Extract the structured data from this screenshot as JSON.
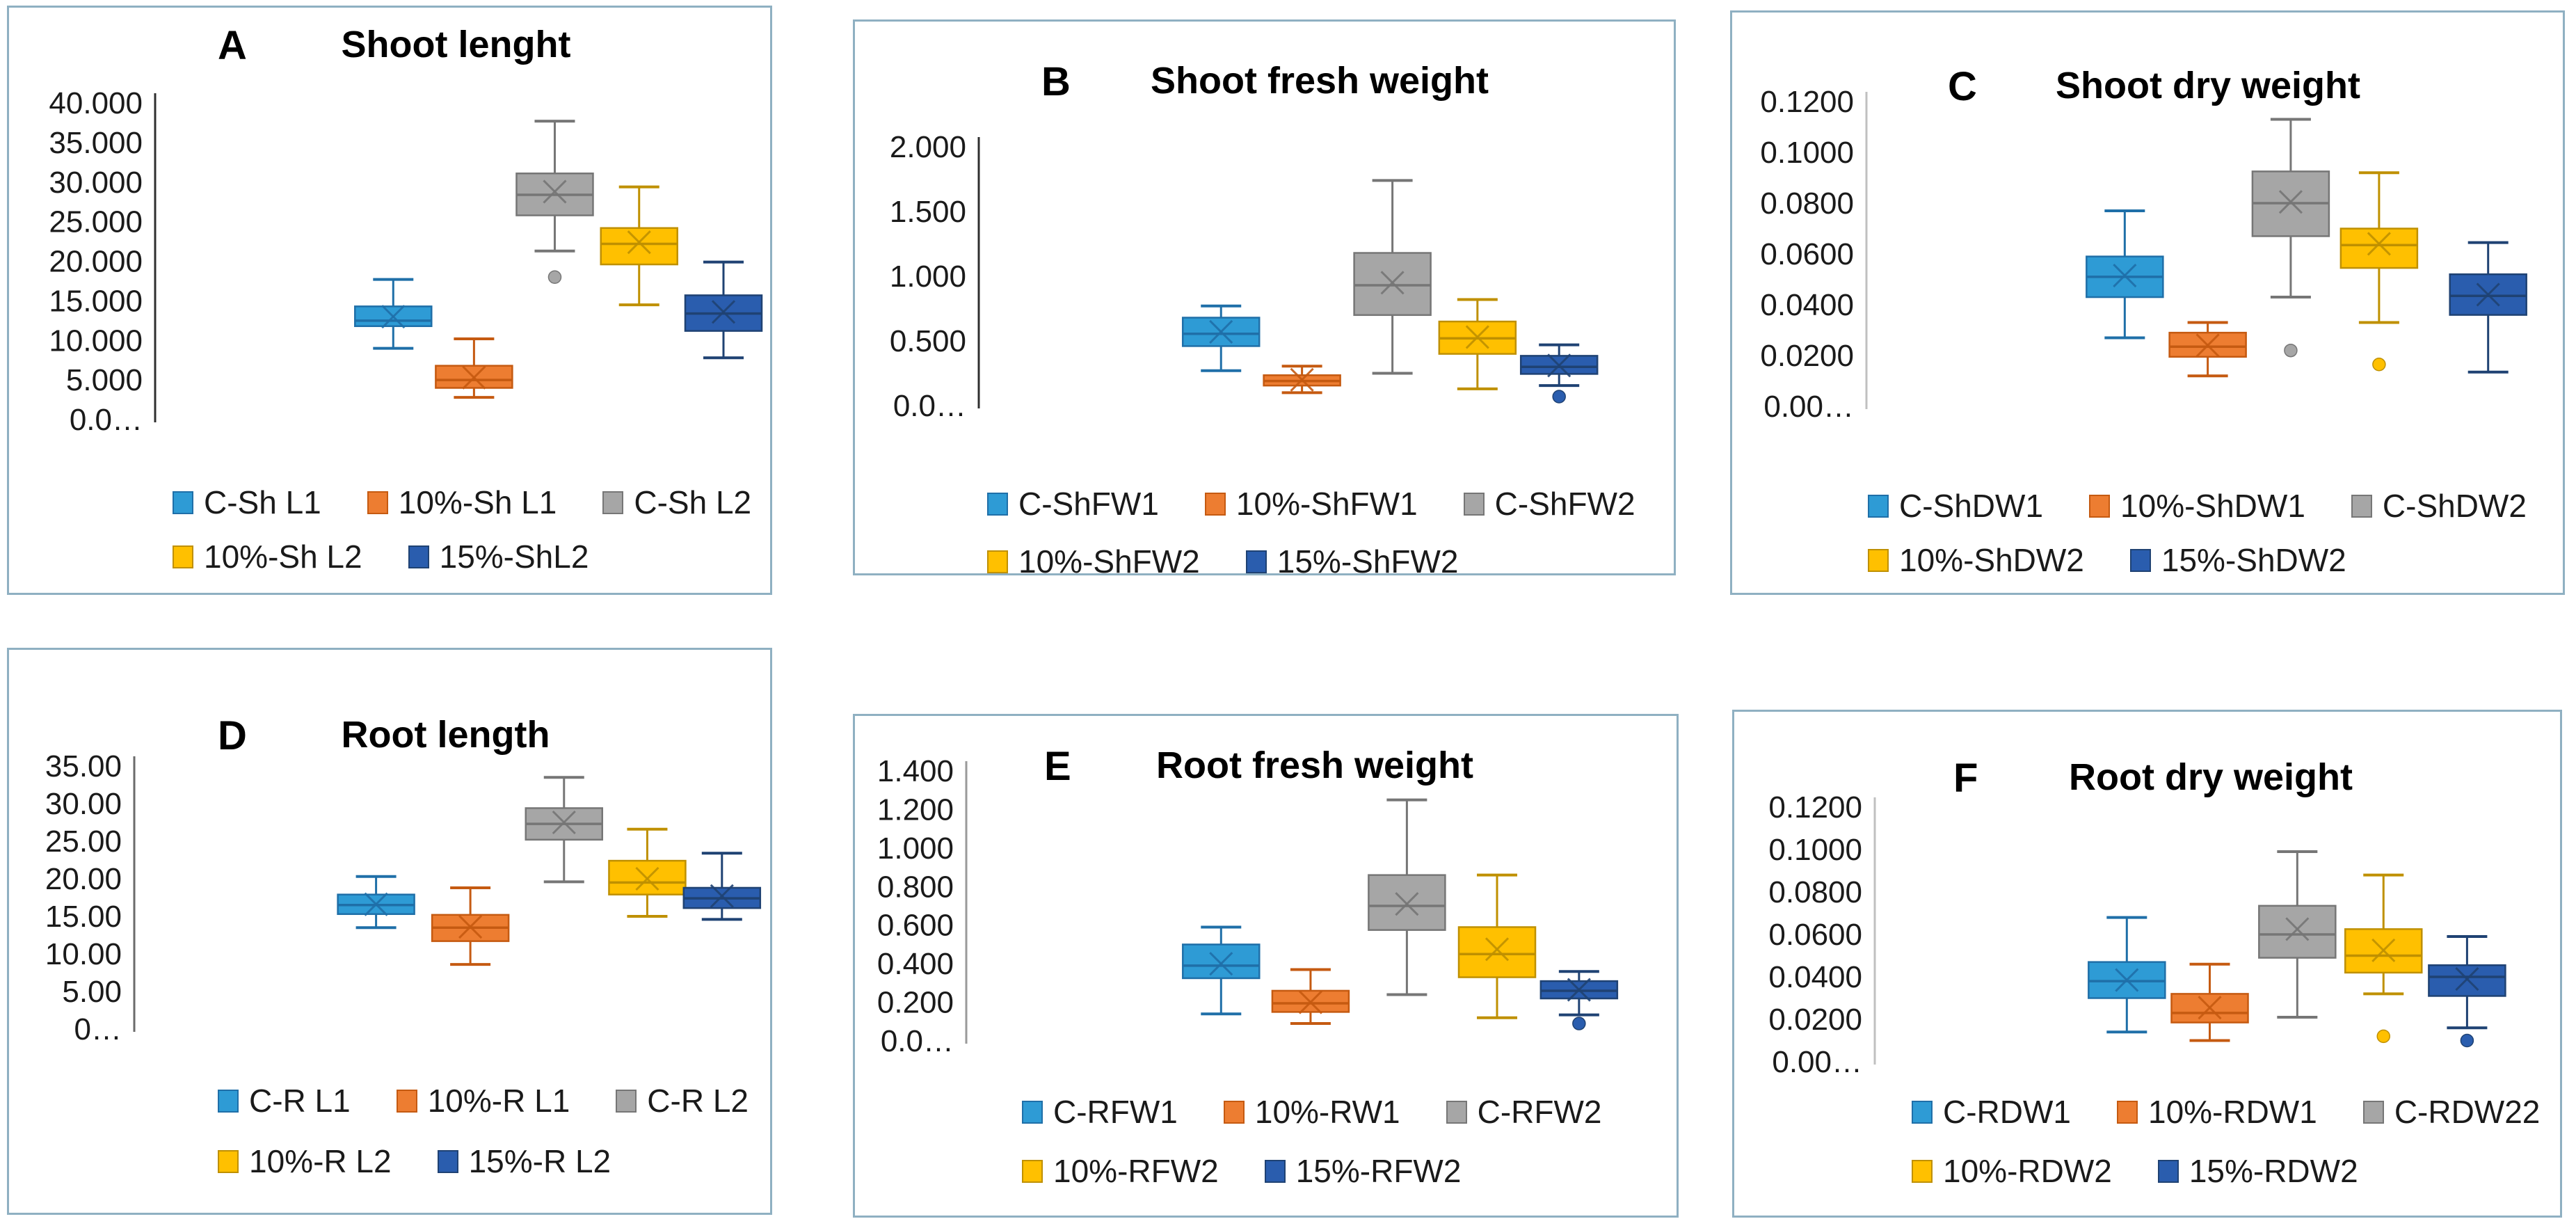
{
  "figure": {
    "background": "#ffffff",
    "panel_border_color": "#8FB0C2",
    "description": "Six box-and-whisker charts labelled A to F"
  },
  "palette": {
    "blue": {
      "fill": "#2E9BD5",
      "stroke": "#1F6FA8"
    },
    "orange": {
      "fill": "#ED7D31",
      "stroke": "#C55A11"
    },
    "gray": {
      "fill": "#A6A6A6",
      "stroke": "#767676"
    },
    "yellow": {
      "fill": "#FFC000",
      "stroke": "#BF9000"
    },
    "darkblue": {
      "fill": "#2A5DAE",
      "stroke": "#1F4273"
    }
  },
  "chart_data": [
    {
      "type": "box",
      "panel_label": "A",
      "title": "Shoot lenght",
      "xlabel": "",
      "ylabel": "",
      "ylim": [
        0,
        40
      ],
      "yticks": [
        "40.000",
        "35.000",
        "30.000",
        "25.000",
        "20.000",
        "15.000",
        "10.000",
        "5.000",
        "0.0…"
      ],
      "ytick_values": [
        40,
        35,
        30,
        25,
        20,
        15,
        10,
        5,
        0
      ],
      "grid": false,
      "legend_position": "bottom",
      "series": [
        {
          "name": "C-Sh L1",
          "color": "blue",
          "low": 9.0,
          "q1": 11.8,
          "median": 12.5,
          "mean": 13.0,
          "q3": 14.3,
          "high": 17.7,
          "outliers": []
        },
        {
          "name": "10%-Sh L1",
          "color": "orange",
          "low": 2.8,
          "q1": 4.0,
          "median": 5.0,
          "mean": 5.3,
          "q3": 6.8,
          "high": 10.2,
          "outliers": []
        },
        {
          "name": "C-Sh L2",
          "color": "gray",
          "low": 21.3,
          "q1": 25.8,
          "median": 28.4,
          "mean": 28.8,
          "q3": 31.1,
          "high": 37.7,
          "outliers": [
            18.0
          ]
        },
        {
          "name": "10%-Sh L2",
          "color": "yellow",
          "low": 14.5,
          "q1": 19.6,
          "median": 22.2,
          "mean": 22.4,
          "q3": 24.2,
          "high": 29.4,
          "outliers": []
        },
        {
          "name": "15%-ShL2",
          "color": "darkblue",
          "low": 7.8,
          "q1": 11.2,
          "median": 13.4,
          "mean": 13.6,
          "q3": 15.7,
          "high": 19.9,
          "outliers": []
        }
      ]
    },
    {
      "type": "box",
      "panel_label": "B",
      "title": "Shoot fresh weight",
      "xlabel": "",
      "ylabel": "",
      "ylim": [
        0,
        2
      ],
      "yticks": [
        "2.000",
        "1.500",
        "1.000",
        "0.500",
        "0.0…"
      ],
      "ytick_values": [
        2,
        1.5,
        1,
        0.5,
        0
      ],
      "grid": false,
      "legend_position": "bottom",
      "series": [
        {
          "name": "C-ShFW1",
          "color": "blue",
          "low": 0.27,
          "q1": 0.46,
          "median": 0.555,
          "mean": 0.57,
          "q3": 0.68,
          "high": 0.77,
          "outliers": []
        },
        {
          "name": "10%-ShFW1",
          "color": "orange",
          "low": 0.1,
          "q1": 0.155,
          "median": 0.19,
          "mean": 0.2,
          "q3": 0.235,
          "high": 0.305,
          "outliers": []
        },
        {
          "name": "C-ShFW2",
          "color": "gray",
          "low": 0.25,
          "q1": 0.7,
          "median": 0.93,
          "mean": 0.95,
          "q3": 1.18,
          "high": 1.74,
          "outliers": []
        },
        {
          "name": "10%-ShFW2",
          "color": "yellow",
          "low": 0.13,
          "q1": 0.4,
          "median": 0.52,
          "mean": 0.53,
          "q3": 0.65,
          "high": 0.82,
          "outliers": []
        },
        {
          "name": "15%-ShFW2",
          "color": "darkblue",
          "low": 0.155,
          "q1": 0.245,
          "median": 0.3,
          "mean": 0.31,
          "q3": 0.385,
          "high": 0.47,
          "outliers": [
            0.07
          ]
        }
      ]
    },
    {
      "type": "box",
      "panel_label": "C",
      "title": "Shoot dry weight",
      "xlabel": "",
      "ylabel": "",
      "ylim": [
        0,
        0.12
      ],
      "yticks": [
        "0.1200",
        "0.1000",
        "0.0800",
        "0.0600",
        "0.0400",
        "0.0200",
        "0.00…"
      ],
      "ytick_values": [
        0.12,
        0.1,
        0.08,
        0.06,
        0.04,
        0.02,
        0
      ],
      "grid": false,
      "legend_position": "bottom",
      "series": [
        {
          "name": "C-ShDW1",
          "color": "blue",
          "low": 0.027,
          "q1": 0.043,
          "median": 0.051,
          "mean": 0.0515,
          "q3": 0.059,
          "high": 0.077,
          "outliers": []
        },
        {
          "name": "10%-ShDW1",
          "color": "orange",
          "low": 0.012,
          "q1": 0.0195,
          "median": 0.0235,
          "mean": 0.024,
          "q3": 0.029,
          "high": 0.033,
          "outliers": []
        },
        {
          "name": "C-ShDW2",
          "color": "gray",
          "low": 0.043,
          "q1": 0.067,
          "median": 0.08,
          "mean": 0.0805,
          "q3": 0.0925,
          "high": 0.113,
          "outliers": [
            0.022
          ]
        },
        {
          "name": "10%-ShDW2",
          "color": "yellow",
          "low": 0.033,
          "q1": 0.0545,
          "median": 0.0635,
          "mean": 0.064,
          "q3": 0.07,
          "high": 0.092,
          "outliers": [
            0.0165
          ]
        },
        {
          "name": "15%-ShDW2",
          "color": "darkblue",
          "low": 0.0135,
          "q1": 0.036,
          "median": 0.0435,
          "mean": 0.044,
          "q3": 0.052,
          "high": 0.0645,
          "outliers": []
        }
      ]
    },
    {
      "type": "box",
      "panel_label": "D",
      "title": "Root length",
      "xlabel": "",
      "ylabel": "",
      "ylim": [
        0,
        35
      ],
      "yticks": [
        "35.00",
        "30.00",
        "25.00",
        "20.00",
        "15.00",
        "10.00",
        "5.00",
        "0…"
      ],
      "ytick_values": [
        35,
        30,
        25,
        20,
        15,
        10,
        5,
        0
      ],
      "grid": false,
      "legend_position": "bottom",
      "series": [
        {
          "name": "C-R L1",
          "color": "blue",
          "low": 13.5,
          "q1": 15.3,
          "median": 16.5,
          "mean": 16.6,
          "q3": 17.9,
          "high": 20.3,
          "outliers": []
        },
        {
          "name": "10%-R L1",
          "color": "orange",
          "low": 8.6,
          "q1": 11.7,
          "median": 13.5,
          "mean": 13.6,
          "q3": 15.2,
          "high": 18.8,
          "outliers": []
        },
        {
          "name": "C-R L2",
          "color": "gray",
          "low": 19.6,
          "q1": 25.2,
          "median": 27.3,
          "mean": 27.5,
          "q3": 29.4,
          "high": 33.5,
          "outliers": []
        },
        {
          "name": "10%-R L2",
          "color": "yellow",
          "low": 15.0,
          "q1": 17.9,
          "median": 19.5,
          "mean": 20.0,
          "q3": 22.4,
          "high": 26.6,
          "outliers": []
        },
        {
          "name": "15%-R L2",
          "color": "darkblue",
          "low": 14.6,
          "q1": 16.1,
          "median": 17.4,
          "mean": 17.7,
          "q3": 18.8,
          "high": 23.4,
          "outliers": []
        }
      ]
    },
    {
      "type": "box",
      "panel_label": "E",
      "title": "Root fresh weight",
      "xlabel": "",
      "ylabel": "",
      "ylim": [
        0,
        1.4
      ],
      "yticks": [
        "1.400",
        "1.200",
        "1.000",
        "0.800",
        "0.600",
        "0.400",
        "0.200",
        "0.0…"
      ],
      "ytick_values": [
        1.4,
        1.2,
        1.0,
        0.8,
        0.6,
        0.4,
        0.2,
        0
      ],
      "grid": false,
      "legend_position": "bottom",
      "series": [
        {
          "name": "C-RFW1",
          "color": "blue",
          "low": 0.14,
          "q1": 0.325,
          "median": 0.39,
          "mean": 0.4,
          "q3": 0.5,
          "high": 0.59,
          "outliers": []
        },
        {
          "name": "10%-RW1",
          "color": "orange",
          "low": 0.09,
          "q1": 0.15,
          "median": 0.195,
          "mean": 0.2,
          "q3": 0.26,
          "high": 0.37,
          "outliers": []
        },
        {
          "name": "C-RFW2",
          "color": "gray",
          "low": 0.24,
          "q1": 0.575,
          "median": 0.7,
          "mean": 0.71,
          "q3": 0.86,
          "high": 1.25,
          "outliers": []
        },
        {
          "name": "10%-RFW2",
          "color": "yellow",
          "low": 0.12,
          "q1": 0.33,
          "median": 0.45,
          "mean": 0.475,
          "q3": 0.59,
          "high": 0.86,
          "outliers": []
        },
        {
          "name": "15%-RFW2",
          "color": "darkblue",
          "low": 0.135,
          "q1": 0.22,
          "median": 0.26,
          "mean": 0.265,
          "q3": 0.31,
          "high": 0.36,
          "outliers": [
            0.09
          ]
        }
      ]
    },
    {
      "type": "box",
      "panel_label": "F",
      "title": "Root dry weight",
      "xlabel": "",
      "ylabel": "",
      "ylim": [
        0,
        0.12
      ],
      "yticks": [
        "0.1200",
        "0.1000",
        "0.0800",
        "0.0600",
        "0.0400",
        "0.0200",
        "0.00…"
      ],
      "ytick_values": [
        0.12,
        0.1,
        0.08,
        0.06,
        0.04,
        0.02,
        0
      ],
      "grid": false,
      "legend_position": "bottom",
      "series": [
        {
          "name": "C-RDW1",
          "color": "blue",
          "low": 0.014,
          "q1": 0.03,
          "median": 0.038,
          "mean": 0.0385,
          "q3": 0.047,
          "high": 0.068,
          "outliers": []
        },
        {
          "name": "10%-RDW1",
          "color": "orange",
          "low": 0.01,
          "q1": 0.0185,
          "median": 0.023,
          "mean": 0.0255,
          "q3": 0.032,
          "high": 0.046,
          "outliers": []
        },
        {
          "name": "C-RDW22",
          "color": "gray",
          "low": 0.021,
          "q1": 0.049,
          "median": 0.06,
          "mean": 0.0625,
          "q3": 0.0735,
          "high": 0.099,
          "outliers": []
        },
        {
          "name": "10%-RDW2",
          "color": "yellow",
          "low": 0.032,
          "q1": 0.042,
          "median": 0.05,
          "mean": 0.0525,
          "q3": 0.0625,
          "high": 0.088,
          "outliers": [
            0.012
          ]
        },
        {
          "name": "15%-RDW2",
          "color": "darkblue",
          "low": 0.016,
          "q1": 0.031,
          "median": 0.04,
          "mean": 0.039,
          "q3": 0.0455,
          "high": 0.059,
          "outliers": [
            0.01
          ]
        }
      ]
    }
  ]
}
